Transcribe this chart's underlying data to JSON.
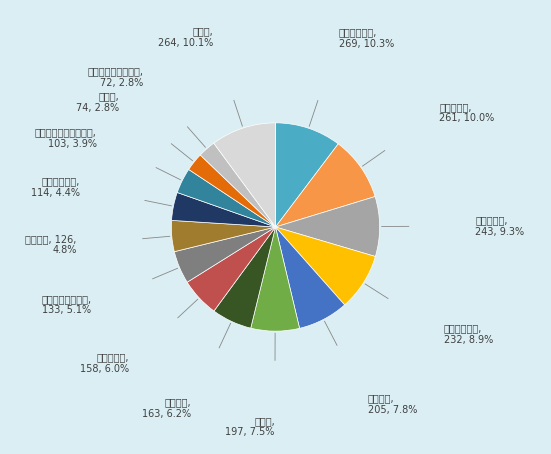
{
  "labels": [
    "グアナファト,\n269, 10.3%",
    "メキシコ州,\n261, 10.0%",
    "コアウイラ,\n243, 9.3%",
    "ヌエポレオン,\n232, 8.9%",
    "ケレタロ,\n205, 7.8%",
    "チワワ,\n197, 7.5%",
    "プエブラ,\n163, 6.2%",
    "メキシコ市,\n158, 6.0%",
    "サンルイスポトシ,\n133, 5.1%",
    "ハリスコ, 126,\n4.8%",
    "タマウリパス,\n114, 4.4%",
    "アグアスカリエンテス,\n103, 3.9%",
    "ソノラ,\n74, 2.8%",
    "バハカリフォルニア,\n72, 2.8%",
    "その他,\n264, 10.1%"
  ],
  "values": [
    269,
    261,
    243,
    232,
    205,
    197,
    163,
    158,
    133,
    126,
    114,
    103,
    74,
    72,
    264
  ],
  "colors": [
    "#4bacc6",
    "#f79646",
    "#a5a5a5",
    "#ffc000",
    "#4472c4",
    "#70ad47",
    "#375623",
    "#c0504d",
    "#7f7f7f",
    "#a07c2e",
    "#1f3864",
    "#31849b",
    "#e36c09",
    "#c0c0c0",
    "#d9d9d9"
  ],
  "label_colors": [
    "#4bacc6",
    "#4bacc6",
    "#4bacc6",
    "#4bacc6",
    "#4bacc6",
    "#4bacc6",
    "#4bacc6",
    "#4bacc6",
    "#4bacc6",
    "#4bacc6",
    "#4bacc6",
    "#4bacc6",
    "#4bacc6",
    "#4bacc6",
    "#4bacc6"
  ],
  "background_color": "#daeef3",
  "startangle": 90,
  "figsize": [
    5.51,
    4.54
  ],
  "dpi": 100,
  "label_fontsize": 7.0,
  "r_label": 1.38,
  "r_line_inner": 1.02,
  "r_line_outer": 1.28
}
